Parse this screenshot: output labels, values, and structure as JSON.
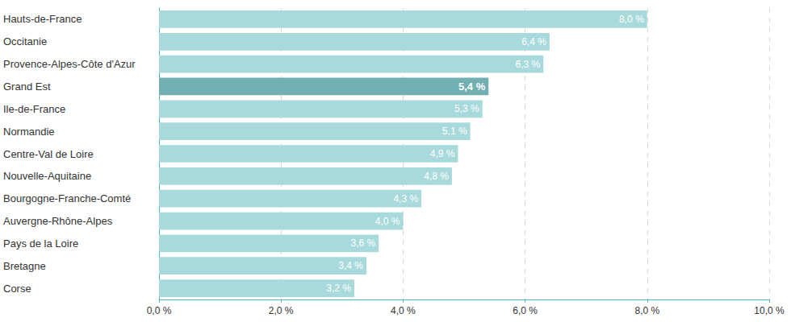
{
  "chart_data": {
    "type": "bar",
    "orientation": "horizontal",
    "categories": [
      "Hauts-de-France",
      "Occitanie",
      "Provence-Alpes-Côte d'Azur",
      "Grand Est",
      "Ile-de-France",
      "Normandie",
      "Centre-Val de Loire",
      "Nouvelle-Aquitaine",
      "Bourgogne-Franche-Comté",
      "Auvergne-Rhône-Alpes",
      "Pays de la Loire",
      "Bretagne",
      "Corse"
    ],
    "values": [
      8.0,
      6.4,
      6.3,
      5.4,
      5.3,
      5.1,
      4.9,
      4.8,
      4.3,
      4.0,
      3.6,
      3.4,
      3.2
    ],
    "value_labels": [
      "8,0 %",
      "6,4 %",
      "6,3 %",
      "5,4 %",
      "5,3 %",
      "5,1 %",
      "4,9 %",
      "4,8 %",
      "4,3 %",
      "4,0 %",
      "3,6 %",
      "3,4 %",
      "3,2 %"
    ],
    "colors": [
      "#a8dadb",
      "#a8dadb",
      "#a8dadb",
      "#72afb2",
      "#a8dadb",
      "#a8dadb",
      "#a8dadb",
      "#a8dadb",
      "#a8dadb",
      "#a8dadb",
      "#a8dadb",
      "#a8dadb",
      "#a8dadb"
    ],
    "xlim": [
      0,
      10
    ],
    "xticks": [
      {
        "value": 0,
        "label": "0,0 %"
      },
      {
        "value": 2,
        "label": "2,0 %"
      },
      {
        "value": 4,
        "label": "4,0 %"
      },
      {
        "value": 6,
        "label": "6,0 %"
      },
      {
        "value": 8,
        "label": "8,0 %"
      },
      {
        "value": 10,
        "label": "10,0 %"
      }
    ],
    "grid": true,
    "data_labels": true
  }
}
